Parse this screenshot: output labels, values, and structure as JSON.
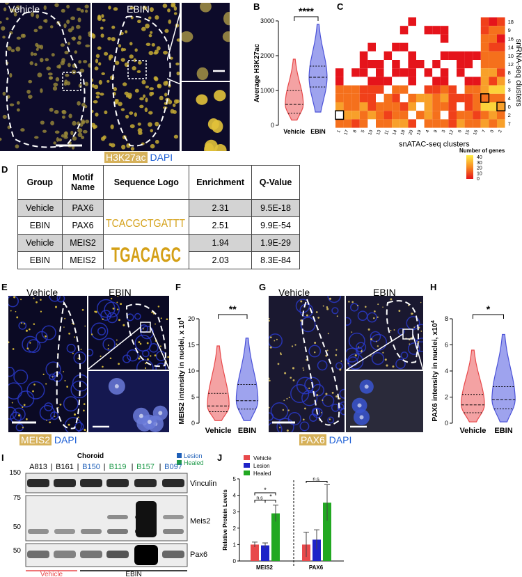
{
  "panel_labels": {
    "A": "A",
    "B": "B",
    "C": "C",
    "D": "D",
    "E": "E",
    "F": "F",
    "G": "G",
    "H": "H",
    "I": "I",
    "J": "J"
  },
  "panelA": {
    "left_title": "Vehicle",
    "right_title": "EBIN",
    "stain": "H3K27ac",
    "counter": "DAPI"
  },
  "panelE": {
    "left_title": "Vehicle",
    "right_title": "EBIN",
    "stain": "MEIS2",
    "counter": "DAPI"
  },
  "panelG": {
    "left_title": "Vehicle",
    "right_title": "EBIN",
    "stain": "PAX6",
    "counter": "DAPI"
  },
  "colors": {
    "vehicle": "#e8494b",
    "ebin": "#4b52d8",
    "healed": "#22a822",
    "lesion": "#1e23c8",
    "tissue_bg": "#0d0b2a",
    "nuclei": "#d8c23a"
  },
  "chart_data": [
    {
      "id": "B",
      "type": "violin",
      "ylabel": "Average H3K27ac",
      "ylim": [
        0,
        3000
      ],
      "yticks": [
        "0",
        "1000",
        "2000",
        "3000"
      ],
      "categories": [
        "Vehicle",
        "EBIN"
      ],
      "series": [
        {
          "name": "Vehicle",
          "median": 600,
          "q1": 350,
          "q3": 1000,
          "min": 150,
          "max": 1900
        },
        {
          "name": "EBIN",
          "median": 1380,
          "q1": 1100,
          "q3": 1700,
          "min": 380,
          "max": 2900
        }
      ],
      "significance": "****"
    },
    {
      "id": "C",
      "type": "heatmap",
      "xlabel": "snATAC-seq clusters",
      "ylabel": "snRNA-seq clusters",
      "xcategories": [
        "1",
        "17",
        "8",
        "5",
        "10",
        "13",
        "11",
        "14",
        "18",
        "20",
        "19",
        "4",
        "9",
        "3",
        "12",
        "6",
        "15",
        "16",
        "7",
        "0",
        "2"
      ],
      "ycategories": [
        "18",
        "9",
        "16",
        "14",
        "10",
        "12",
        "8",
        "5",
        "3",
        "4",
        "0",
        "2",
        "7"
      ],
      "colorbar": {
        "title": "Number of genes",
        "ticks": [
          "40",
          "30",
          "20",
          "10",
          "0"
        ]
      }
    },
    {
      "id": "F",
      "type": "violin",
      "ylabel": "MEIS2 intensity in nuclei, x 10",
      "ylabel_sup": "4",
      "ylim": [
        0,
        20
      ],
      "yticks": [
        "0",
        "5",
        "10",
        "15",
        "20"
      ],
      "categories": [
        "Vehicle",
        "EBIN"
      ],
      "series": [
        {
          "name": "Vehicle",
          "median": 3.3,
          "q1": 2.2,
          "q3": 5.7,
          "min": 0.5,
          "max": 14.8
        },
        {
          "name": "EBIN",
          "median": 4.3,
          "q1": 2.7,
          "q3": 7.4,
          "min": 0.5,
          "max": 16.3
        }
      ],
      "significance": "**"
    },
    {
      "id": "H",
      "type": "violin",
      "ylabel": "PAX6 intensity in nuclei, x10",
      "ylabel_sup": "4",
      "ylim": [
        0,
        8
      ],
      "yticks": [
        "0",
        "2",
        "4",
        "6",
        "8"
      ],
      "categories": [
        "Vehicle",
        "EBIN"
      ],
      "series": [
        {
          "name": "Vehicle",
          "median": 1.4,
          "q1": 0.8,
          "q3": 2.2,
          "min": 0.1,
          "max": 5.6
        },
        {
          "name": "EBIN",
          "median": 1.8,
          "q1": 1.1,
          "q3": 2.8,
          "min": 0.1,
          "max": 6.8
        }
      ],
      "significance": "*"
    },
    {
      "id": "J",
      "type": "bar",
      "ylabel": "Relative Protein Levels",
      "ylim": [
        0,
        5
      ],
      "yticks": [
        "0",
        "1",
        "2",
        "3",
        "4",
        "5"
      ],
      "categories": [
        "MEIS2",
        "PAX6"
      ],
      "series": [
        {
          "name": "Vehicle",
          "values": [
            1.0,
            1.0
          ],
          "err": [
            0.15,
            0.75
          ]
        },
        {
          "name": "Lesion",
          "values": [
            0.95,
            1.3
          ],
          "err": [
            0.15,
            0.6
          ]
        },
        {
          "name": "Healed",
          "values": [
            2.9,
            3.55
          ],
          "err": [
            0.5,
            1.1
          ]
        }
      ],
      "annotations": [
        "n.s",
        "*",
        "*",
        "n.s."
      ]
    }
  ],
  "panelD": {
    "headers": [
      "Group",
      "Motif Name",
      "Sequence Logo",
      "Enrichment",
      "Q-Value"
    ],
    "rows": [
      {
        "group": "Vehicle",
        "motif": "PAX6",
        "enrichment": "2.31",
        "q": "9.5E-18"
      },
      {
        "group": "EBIN",
        "motif": "PAX6",
        "enrichment": "2.51",
        "q": "9.9E-54"
      },
      {
        "group": "Vehicle",
        "motif": "MEIS2",
        "enrichment": "1.94",
        "q": "1.9E-29"
      },
      {
        "group": "EBIN",
        "motif": "MEIS2",
        "enrichment": "2.03",
        "q": "8.3E-84"
      }
    ],
    "logo1": "TCACGCTGATTT",
    "logo2": "TGACAGC"
  },
  "panelI": {
    "title": "Choroid",
    "legend": [
      {
        "label": "Lesion",
        "color": "#1e5fb8"
      },
      {
        "label": "Healed",
        "color": "#1e9a4a"
      }
    ],
    "samples": [
      {
        "id": "A813",
        "color": "#000"
      },
      {
        "id": "B161",
        "color": "#000"
      },
      {
        "id": "B150",
        "color": "#1e5fb8"
      },
      {
        "id": "B119",
        "color": "#1e9a4a"
      },
      {
        "id": "B157",
        "color": "#1e9a4a"
      },
      {
        "id": "B097",
        "color": "#1e5fb8"
      }
    ],
    "markers": [
      "150",
      "75",
      "50",
      "50"
    ],
    "bands": [
      "Vinculin",
      "Meis2",
      "Pax6"
    ],
    "groups": [
      "Vehicle",
      "EBIN"
    ]
  }
}
